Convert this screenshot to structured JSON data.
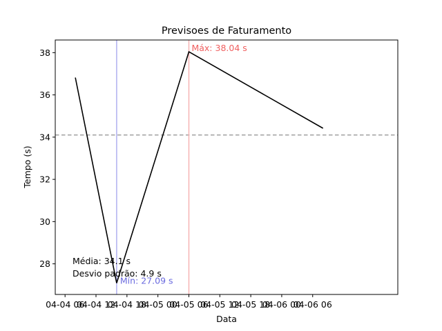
{
  "chart_data": {
    "type": "line",
    "title": "Previsoes de Faturamento",
    "xlabel": "Data",
    "ylabel": "Tempo (s)",
    "x_tick_labels": [
      "04-04 06",
      "04-04 12",
      "04-04 18",
      "04-05 00",
      "04-05 06",
      "04-05 12",
      "04-05 18",
      "04-06 00",
      "04-06 06"
    ],
    "y_ticks": [
      28,
      30,
      32,
      34,
      36,
      38
    ],
    "xlim_hours": [
      4.1,
      70.5
    ],
    "ylim": [
      26.55,
      38.6
    ],
    "series": [
      {
        "points": [
          {
            "x": "2024-04-04 08:00",
            "y": 36.82
          },
          {
            "x": "2024-04-04 16:00",
            "y": 27.09
          },
          {
            "x": "2024-04-05 06:00",
            "y": 38.04
          },
          {
            "x": "2024-04-06 08:00",
            "y": 34.42
          }
        ],
        "color": "#000000"
      }
    ],
    "mean_line": {
      "value": 34.1,
      "color": "#a0a0a0",
      "style": "dashed"
    },
    "min_marker": {
      "x": "2024-04-04 16:00",
      "value": 27.09,
      "color": "#b0b0f0",
      "label": "Mín: 27.09 s",
      "label_color": "#6a6adf"
    },
    "max_marker": {
      "x": "2024-04-05 06:00",
      "value": 38.04,
      "color": "#f7b3b3",
      "label": "Máx: 38.04 s",
      "label_color": "#f06060"
    },
    "stats_text": [
      "Média: 34.1 s",
      "Desvio padrão: 4.9 s"
    ],
    "grid": false
  }
}
